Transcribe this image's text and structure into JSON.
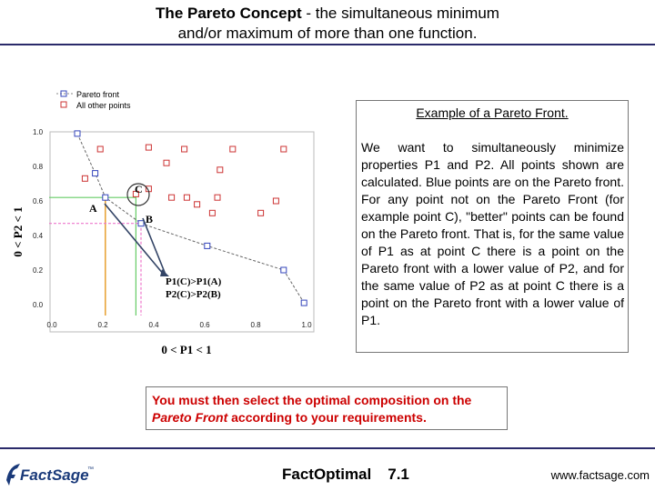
{
  "header": {
    "title_bold": "The Pareto Concept",
    "title_rest_line1": " - the simultaneous minimum",
    "title_line2": "and/or maximum of more than one function."
  },
  "chart_data": {
    "type": "scatter",
    "legend": [
      {
        "label": "Pareto front",
        "marker": "square-blue"
      },
      {
        "label": "All other points",
        "marker": "square-red"
      }
    ],
    "legend_position": "top-left",
    "xlabel": "0 < P1 < 1",
    "ylabel": "0 < P2 < 1",
    "xlim": [
      0.0,
      1.0
    ],
    "ylim": [
      0.0,
      1.0
    ],
    "x_ticks": [
      "0.0",
      "0.2",
      "0.4",
      "0.6",
      "0.8",
      "1.0"
    ],
    "y_ticks": [
      "0.0",
      "0.2",
      "0.4",
      "0.6",
      "0.8",
      "1.0"
    ],
    "series": [
      {
        "name": "Pareto front",
        "color": "#3344bb",
        "points": [
          [
            0.1,
            0.99
          ],
          [
            0.17,
            0.76
          ],
          [
            0.21,
            0.62
          ],
          [
            0.35,
            0.47
          ],
          [
            0.61,
            0.34
          ],
          [
            0.91,
            0.2
          ],
          [
            0.99,
            0.01
          ]
        ]
      },
      {
        "name": "All other points",
        "color": "#cc3333",
        "points": [
          [
            0.19,
            0.9
          ],
          [
            0.38,
            0.91
          ],
          [
            0.52,
            0.9
          ],
          [
            0.71,
            0.9
          ],
          [
            0.91,
            0.9
          ],
          [
            0.45,
            0.82
          ],
          [
            0.66,
            0.78
          ],
          [
            0.13,
            0.73
          ],
          [
            0.33,
            0.64
          ],
          [
            0.38,
            0.67
          ],
          [
            0.47,
            0.62
          ],
          [
            0.53,
            0.62
          ],
          [
            0.65,
            0.62
          ],
          [
            0.88,
            0.6
          ],
          [
            0.57,
            0.58
          ],
          [
            0.63,
            0.53
          ],
          [
            0.82,
            0.53
          ]
        ]
      }
    ],
    "annotations": {
      "point_A": "A",
      "point_B": "B",
      "point_C": "C",
      "line1": "P1(C)>P1(A)",
      "line2": "P2(C)>P2(B)"
    },
    "colors": {
      "front_line": "#666666",
      "arrow": "#334466",
      "guide_orange": "#e8a030",
      "guide_green": "#66cc66",
      "guide_pink": "#ee77cc"
    }
  },
  "text_box": {
    "heading": "Example of a Pareto Front.",
    "body": "We want to simultaneously minimize properties P1 and P2. All points shown are calculated. Blue points are on the Pareto front. For any point not on the Pareto Front (for example point C), \"better\" points can be found on the Pareto front. That is, for the same value of P1 as at point C there is a point on the Pareto front with a lower value of P2, and for the same value of P2 as at point C there is a point on the Pareto front with a lower value of P1."
  },
  "callout": {
    "part1": "You must then select the optimal composition on the ",
    "italic": "Pareto Front",
    "part2": " according to your requirements.",
    "color": "#cc0000"
  },
  "footer": {
    "logo_text": "FactSage",
    "logo_tm": "™",
    "center_name": "FactOptimal",
    "center_version": "7.1",
    "right": "www.factsage.com"
  }
}
